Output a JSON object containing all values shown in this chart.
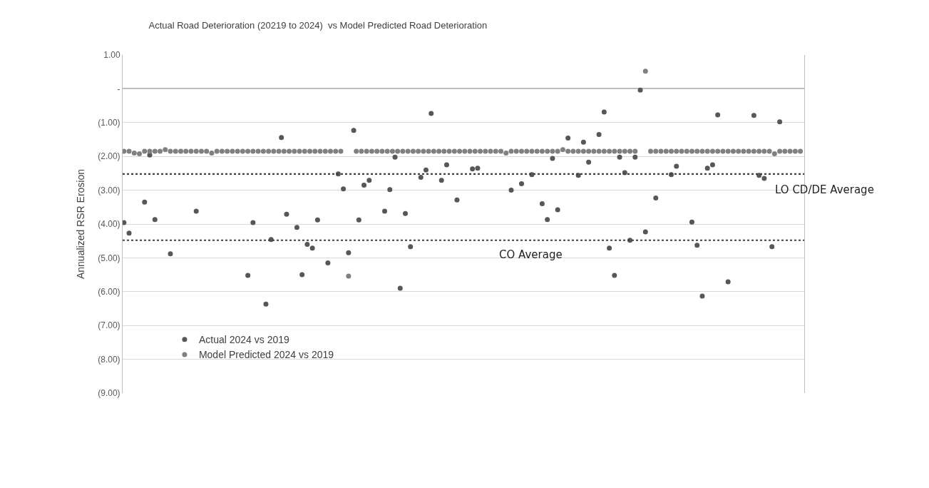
{
  "chart_data": {
    "type": "scatter",
    "title": "Actual Road Deterioration (20219 to 2024)  vs Model Predicted Road Deterioration",
    "ylabel": "Annualized RSR Erosion",
    "categories": [
      null,
      null,
      null,
      null,
      null,
      null,
      null,
      null,
      null,
      null,
      null,
      null,
      null,
      null,
      null,
      null,
      null,
      null,
      null,
      null,
      null,
      null,
      null,
      null,
      null,
      null,
      null,
      null,
      null,
      null,
      null,
      null,
      null,
      null,
      null,
      null,
      null,
      null,
      null,
      null,
      null,
      null,
      null,
      null,
      null,
      null,
      null,
      null,
      null,
      null,
      null,
      null,
      null,
      null,
      null,
      null,
      null,
      null,
      null,
      null,
      null,
      null,
      null,
      null,
      null,
      null,
      null,
      null,
      null,
      null,
      null,
      null,
      null,
      null,
      null,
      null,
      null,
      null,
      null,
      null,
      null,
      null,
      null,
      null,
      null,
      null,
      null,
      null,
      null,
      null,
      null,
      null,
      null,
      null,
      null,
      null,
      null,
      null,
      null,
      null,
      null,
      null,
      null,
      null,
      null,
      null,
      null,
      null,
      null,
      null,
      null,
      null,
      null,
      null,
      null,
      null,
      null,
      null,
      null,
      null,
      null,
      null,
      null,
      null,
      null,
      null,
      null,
      null,
      null,
      null,
      null,
      null,
      null,
      null,
      null,
      null,
      null,
      null,
      null,
      null,
      null,
      null,
      null,
      null,
      null,
      null,
      null,
      null,
      null,
      null,
      null,
      null,
      null,
      null,
      null,
      null,
      null,
      null,
      null,
      null,
      null,
      null,
      null,
      null,
      null,
      null,
      null,
      null,
      null,
      null,
      null,
      null,
      null,
      null,
      null,
      null,
      null,
      null,
      null,
      null,
      null,
      null,
      null,
      null,
      null,
      null,
      null,
      null,
      null,
      null,
      null,
      null,
      null,
      null,
      null,
      null,
      null,
      null,
      null,
      null,
      null,
      null,
      null,
      null,
      null,
      null,
      null,
      null,
      null,
      null,
      null,
      null,
      null,
      null,
      null,
      null,
      null,
      null,
      null,
      null,
      null,
      null,
      null,
      null,
      null,
      null,
      null,
      null,
      null,
      null,
      null,
      null,
      null,
      null,
      null,
      null,
      null,
      null,
      null,
      null,
      null,
      null,
      null,
      null,
      null,
      null,
      null,
      null,
      null,
      null,
      null,
      null,
      null,
      null,
      null,
      null,
      null,
      null,
      null,
      null,
      null,
      null,
      null,
      null
    ],
    "series": [
      {
        "name": "Actual 2024 vs 2019",
        "color": "#575757",
        "values": [
          -3.96,
          null,
          -4.27,
          null,
          null,
          null,
          null,
          null,
          -3.35,
          null,
          -1.96,
          null,
          -3.87,
          null,
          null,
          null,
          null,
          null,
          -4.88,
          null,
          null,
          null,
          null,
          null,
          null,
          null,
          null,
          null,
          -3.62,
          null,
          null,
          null,
          null,
          null,
          null,
          null,
          null,
          null,
          null,
          null,
          null,
          null,
          null,
          null,
          null,
          null,
          null,
          null,
          -5.52,
          null,
          -3.96,
          null,
          null,
          null,
          null,
          -6.37,
          null,
          -4.46,
          null,
          null,
          null,
          -1.44,
          null,
          -3.71,
          null,
          null,
          null,
          -4.1,
          null,
          -5.5,
          null,
          -4.6,
          null,
          -4.71,
          null,
          -3.88,
          null,
          null,
          null,
          -5.15,
          null,
          null,
          null,
          -2.52,
          null,
          -2.96,
          null,
          -4.85,
          null,
          -1.23,
          null,
          -3.88,
          null,
          -2.85,
          null,
          -2.71,
          null,
          null,
          null,
          null,
          null,
          -3.62,
          null,
          -2.98,
          null,
          -2.02,
          null,
          -5.9,
          null,
          -3.69,
          null,
          -4.67,
          null,
          null,
          null,
          -2.62,
          null,
          -2.4,
          null,
          -0.73,
          null,
          null,
          null,
          -2.71,
          null,
          -2.25,
          null,
          null,
          null,
          -3.29,
          null,
          null,
          null,
          null,
          null,
          -2.37,
          null,
          -2.35,
          null,
          null,
          null,
          null,
          null,
          null,
          null,
          null,
          null,
          null,
          null,
          null,
          -3.0,
          null,
          null,
          null,
          -2.81,
          null,
          null,
          null,
          -2.54,
          null,
          null,
          null,
          -3.4,
          null,
          -3.87,
          null,
          -2.06,
          null,
          -3.58,
          null,
          null,
          null,
          -1.46,
          null,
          null,
          null,
          -2.56,
          null,
          -1.58,
          null,
          -2.17,
          null,
          null,
          null,
          -1.35,
          null,
          -0.69,
          null,
          -4.71,
          null,
          -5.52,
          null,
          -2.02,
          null,
          -2.48,
          null,
          -4.48,
          null,
          -2.02,
          null,
          -0.04,
          null,
          -4.23,
          null,
          null,
          null,
          -3.23,
          null,
          null,
          null,
          null,
          null,
          -2.54,
          null,
          -2.29,
          null,
          null,
          null,
          null,
          null,
          -3.94,
          null,
          -4.63,
          null,
          -6.13,
          null,
          -2.35,
          null,
          -2.25,
          null,
          -0.77,
          null,
          null,
          null,
          -5.71,
          null,
          null,
          null,
          null,
          null,
          null,
          null,
          null,
          null,
          -0.79,
          null,
          -2.56,
          null,
          -2.65,
          null,
          null,
          -4.67,
          null,
          null,
          -0.98,
          null,
          null,
          null,
          null,
          null,
          null,
          null,
          null,
          null
        ]
      },
      {
        "name": "Model Predicted 2024 vs 2019",
        "color": "#808080",
        "values": [
          -1.85,
          null,
          -1.85,
          null,
          -1.9,
          null,
          -1.92,
          null,
          -1.85,
          null,
          -1.85,
          null,
          -1.85,
          null,
          -1.85,
          null,
          -1.8,
          null,
          -1.85,
          null,
          -1.85,
          null,
          -1.85,
          null,
          -1.85,
          null,
          -1.85,
          null,
          -1.85,
          null,
          -1.85,
          null,
          -1.85,
          null,
          -1.9,
          null,
          -1.85,
          null,
          -1.85,
          null,
          -1.85,
          null,
          -1.85,
          null,
          -1.85,
          null,
          -1.85,
          null,
          -1.85,
          null,
          -1.85,
          null,
          -1.85,
          null,
          -1.85,
          null,
          -1.85,
          null,
          -1.85,
          null,
          -1.85,
          null,
          -1.85,
          null,
          -1.85,
          null,
          -1.85,
          null,
          -1.85,
          null,
          -1.85,
          null,
          -1.85,
          null,
          -1.85,
          null,
          -1.85,
          null,
          -1.85,
          null,
          -1.85,
          null,
          -1.85,
          null,
          -1.85,
          null,
          null,
          -5.54,
          null,
          null,
          -1.85,
          null,
          -1.85,
          null,
          -1.85,
          null,
          -1.85,
          null,
          -1.85,
          null,
          -1.85,
          null,
          -1.85,
          null,
          -1.85,
          null,
          -1.85,
          null,
          -1.85,
          null,
          -1.85,
          null,
          -1.85,
          null,
          -1.85,
          null,
          -1.85,
          null,
          -1.85,
          null,
          -1.85,
          null,
          -1.85,
          null,
          -1.85,
          null,
          -1.85,
          null,
          -1.85,
          null,
          -1.85,
          null,
          -1.85,
          null,
          -1.85,
          null,
          -1.85,
          null,
          -1.85,
          null,
          -1.85,
          null,
          -1.85,
          null,
          -1.85,
          null,
          -1.85,
          null,
          -1.9,
          null,
          -1.85,
          null,
          -1.85,
          null,
          -1.85,
          null,
          -1.85,
          null,
          -1.85,
          null,
          -1.85,
          null,
          -1.85,
          null,
          -1.85,
          null,
          -1.85,
          null,
          -1.85,
          null,
          -1.8,
          null,
          -1.85,
          null,
          -1.85,
          null,
          -1.85,
          null,
          -1.85,
          null,
          -1.85,
          null,
          -1.85,
          null,
          -1.85,
          null,
          -1.85,
          null,
          -1.85,
          null,
          -1.85,
          null,
          -1.85,
          null,
          -1.85,
          null,
          -1.85,
          null,
          -1.85,
          null,
          null,
          null,
          0.52,
          null,
          -1.85,
          null,
          -1.85,
          null,
          -1.85,
          null,
          -1.85,
          null,
          -1.85,
          null,
          -1.85,
          null,
          -1.85,
          null,
          -1.85,
          null,
          -1.85,
          null,
          -1.85,
          null,
          -1.85,
          null,
          -1.85,
          null,
          -1.85,
          null,
          -1.85,
          null,
          -1.85,
          null,
          -1.85,
          null,
          -1.85,
          null,
          -1.85,
          null,
          -1.85,
          null,
          -1.85,
          null,
          -1.85,
          null,
          -1.85,
          null,
          -1.85,
          null,
          -1.85,
          null,
          -1.92,
          null,
          -1.85,
          null,
          -1.85,
          null,
          -1.85,
          null,
          -1.85,
          null,
          -1.85,
          null
        ]
      }
    ],
    "ylim": [
      -9,
      1
    ],
    "yticks": [
      {
        "value": 1,
        "label": "1.00"
      },
      {
        "value": 0,
        "label": "-"
      },
      {
        "value": -1,
        "label": "(1.00)"
      },
      {
        "value": -2,
        "label": "(2.00)"
      },
      {
        "value": -3,
        "label": "(3.00)"
      },
      {
        "value": -4,
        "label": "(4.00)"
      },
      {
        "value": -5,
        "label": "(5.00)"
      },
      {
        "value": -6,
        "label": "(6.00)"
      },
      {
        "value": -7,
        "label": "(7.00)"
      },
      {
        "value": -8,
        "label": "(8.00)"
      },
      {
        "value": -9,
        "label": "(9.00)"
      }
    ],
    "ref_lines": [
      {
        "axis": "y",
        "value": -2.52,
        "label": "LO CD/DE Average",
        "color": "#404040",
        "line_style": "dotted"
      },
      {
        "axis": "y",
        "value": -4.48,
        "label": "CO Average",
        "color": "#404040",
        "line_style": "dotted"
      }
    ],
    "grid": "y",
    "legend": "bottom left",
    "marker": "circle",
    "tick_labels": "y"
  }
}
